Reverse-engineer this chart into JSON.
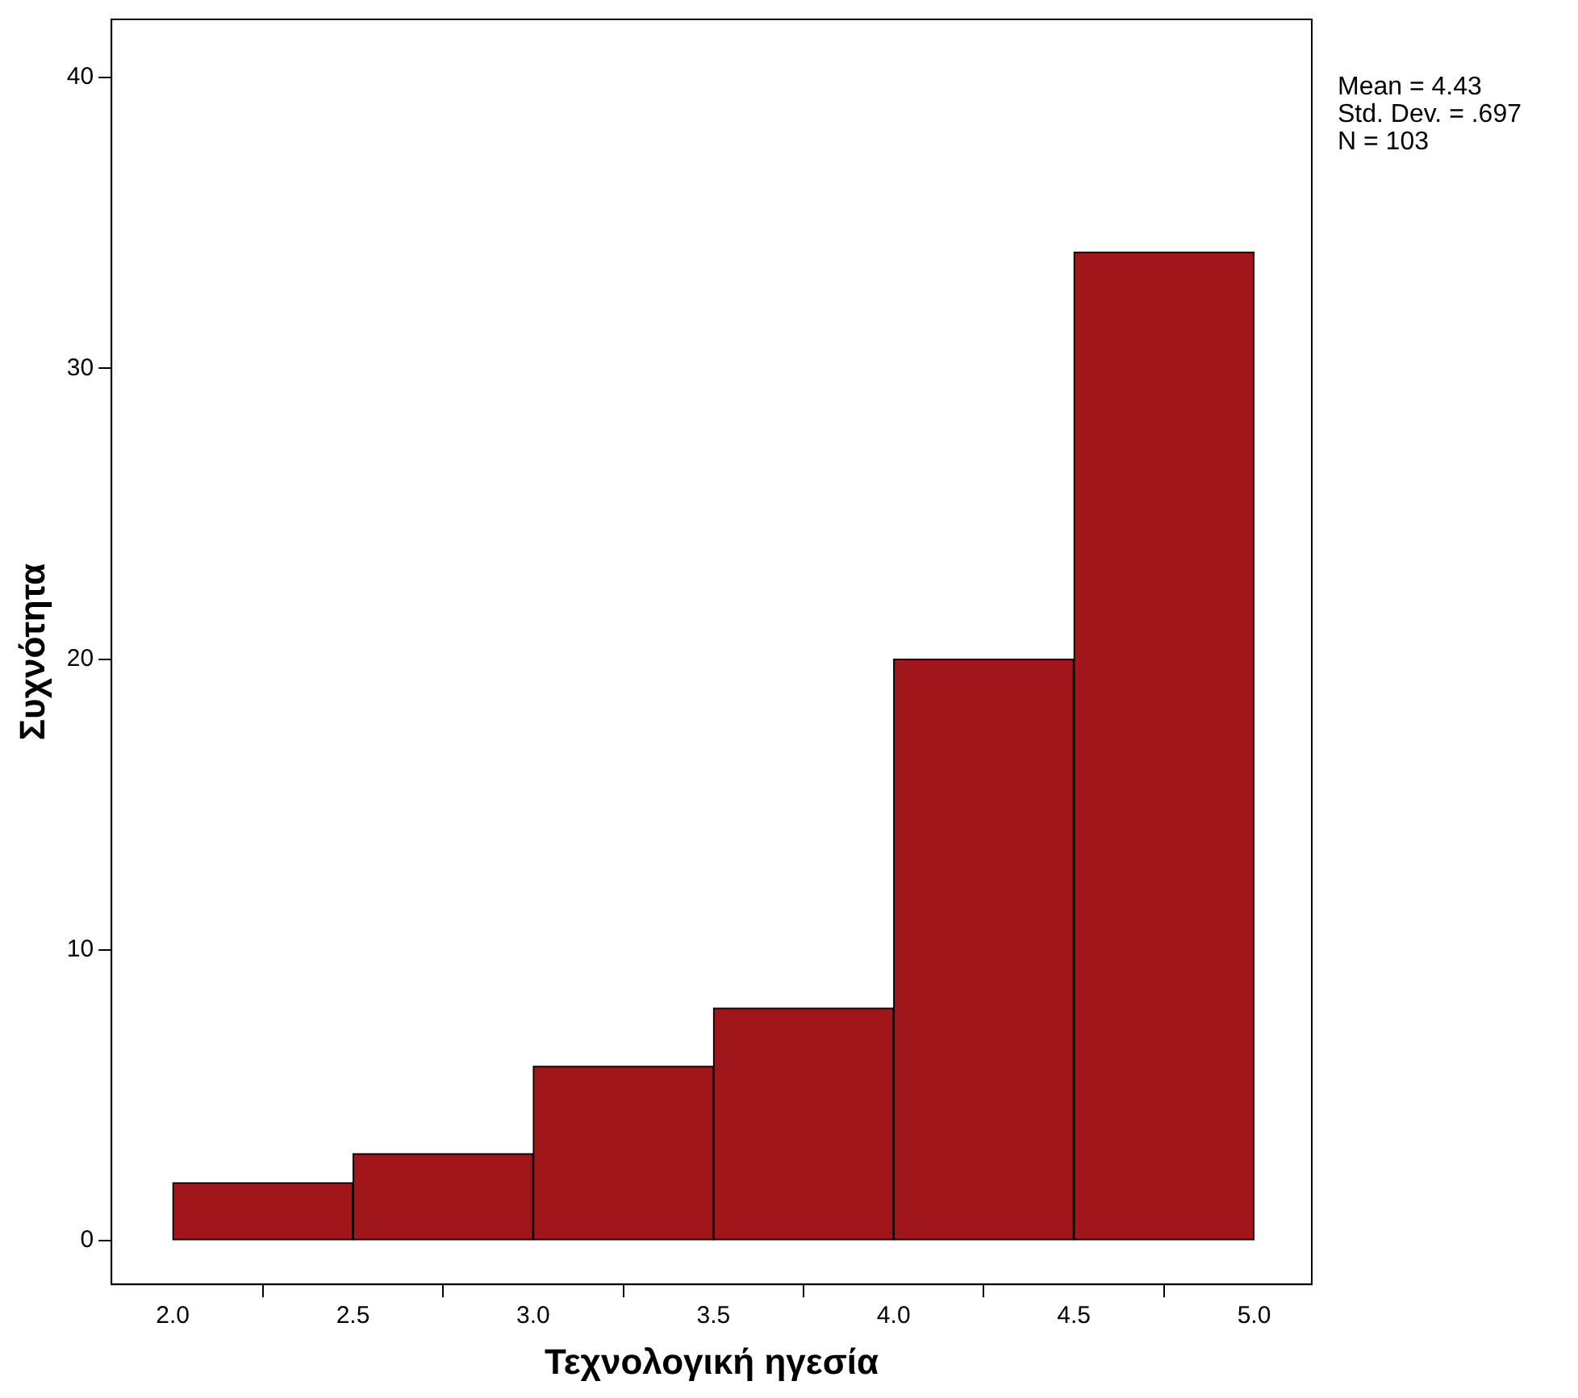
{
  "chart_data": {
    "type": "histogram",
    "xlabel": "Τεχνολογική ηγεσία",
    "ylabel": "Συχνότητα",
    "bins": [
      2.0,
      2.5,
      3.0,
      3.5,
      4.0,
      4.5,
      5.0
    ],
    "values": [
      2,
      3,
      6,
      8,
      20,
      34
    ],
    "color": "#a0161b",
    "xlim": [
      1.83,
      5.16
    ],
    "xticks": [
      {
        "value": 2,
        "label": "2.0"
      },
      {
        "value": 2.5,
        "label": "2.5"
      },
      {
        "value": 3,
        "label": "3.0"
      },
      {
        "value": 3.5,
        "label": "3.5"
      },
      {
        "value": 4,
        "label": "4.0"
      },
      {
        "value": 4.5,
        "label": "4.5"
      },
      {
        "value": 5,
        "label": "5.0"
      }
    ],
    "ylim": [
      -1.5,
      42
    ],
    "yticks": [
      0,
      10,
      20,
      30,
      40
    ],
    "grid": false,
    "legend": false,
    "annotations": [
      "Mean = 4.43",
      "Std. Dev. = .697",
      "N = 103"
    ]
  }
}
